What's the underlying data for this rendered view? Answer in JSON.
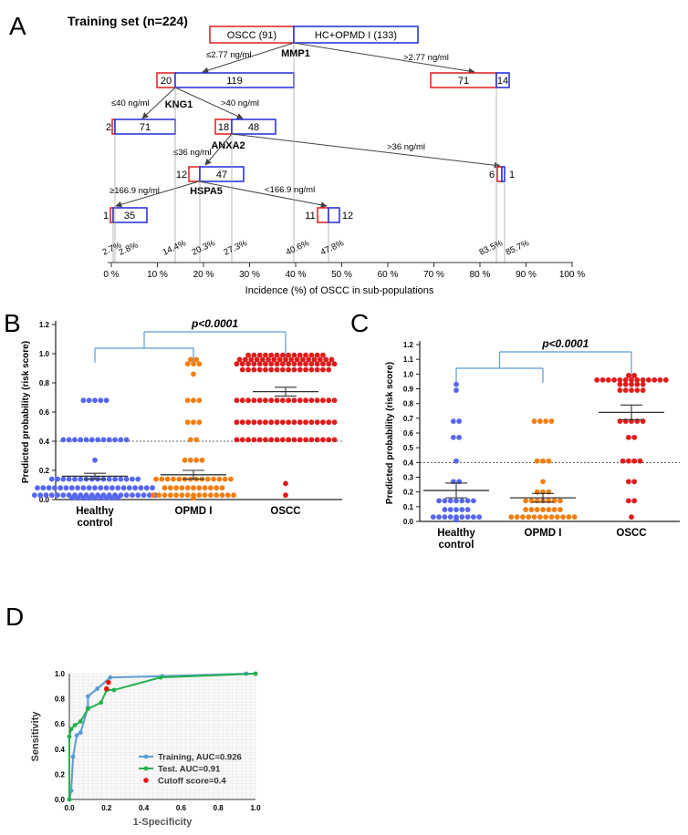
{
  "panels": {
    "a": "A",
    "b": "B",
    "c": "C",
    "d": "D"
  },
  "colors": {
    "red": "#e01b1b",
    "blue": "#1f2bd9",
    "orange": "#f07f13",
    "dot_blue": "#5567ee",
    "train": "#5b9bd5",
    "test": "#22b14c",
    "cut": "#ee1111",
    "bracket": "#5b9bd5"
  },
  "tree": {
    "title": "Training set (n=224)",
    "root": {
      "left": "OSCC (91)",
      "right": "HC+OPMD I (133)"
    },
    "splits": {
      "mmp1": "MMP1",
      "kng1": "KNG1",
      "anxa2": "ANXA2",
      "hspa5": "HSPA5"
    },
    "cond": {
      "mmp1_lo": "≤2.77 ng/ml",
      "mmp1_hi": ">2.77 ng/ml",
      "kng1_lo": "≤40 ng/ml",
      "kng1_hi": ">40 ng/ml",
      "anxa2_lo": "≤36 ng/ml",
      "anxa2_hi": ">36 ng/ml",
      "hspa5_lo": "≥166.9 ng/ml",
      "hspa5_hi": "<166.9 ng/ml"
    },
    "nodes": {
      "n1": {
        "a": "20",
        "b": "119"
      },
      "n2": {
        "a": "71",
        "b": "14"
      },
      "n3": {
        "a": "2",
        "b": "71"
      },
      "n4": {
        "a": "18",
        "b": "48"
      },
      "n5": {
        "a": "12",
        "b": "47"
      },
      "n6": {
        "a": "6",
        "b": "1"
      },
      "n7": {
        "a": "1",
        "b": "35"
      },
      "n8": {
        "a": "11",
        "b": "12"
      }
    },
    "incidence": [
      "2.7%",
      "2.8%",
      "14.4%",
      "20.3%",
      "27.3%",
      "40.6%",
      "47.8%",
      "83.5%",
      "85.7%"
    ],
    "axis_ticks": [
      "0 %",
      "10 %",
      "20 %",
      "30 %",
      "40 %",
      "50 %",
      "60 %",
      "70 %",
      "80 %",
      "90 %",
      "100 %"
    ],
    "axis_label": "Incidence (%) of OSCC in sub-populations"
  },
  "panel_b": {
    "pvalue": "p<0.0001",
    "ylabel": "Predicted probability (risk score)",
    "yticks": [
      "0.0",
      "0.2",
      "0.4",
      "0.6",
      "0.8",
      "1.0",
      "1.2"
    ],
    "groups": [
      {
        "line1": "Healthy",
        "line2": "control"
      },
      {
        "line1": "OPMD I",
        "line2": ""
      },
      {
        "line1": "OSCC",
        "line2": ""
      }
    ]
  },
  "panel_c": {
    "pvalue": "p<0.0001",
    "ylabel": "Predicted probability (risk score)",
    "yticks": [
      "0.0",
      "0.1",
      "0.2",
      "0.3",
      "0.4",
      "0.5",
      "0.6",
      "0.7",
      "0.8",
      "0.9",
      "1.0",
      "1.1",
      "1.2"
    ],
    "groups": [
      {
        "line1": "Healthy",
        "line2": "control"
      },
      {
        "line1": "OPMD I",
        "line2": ""
      },
      {
        "line1": "OSCC",
        "line2": ""
      }
    ]
  },
  "chart_data": [
    {
      "type": "scatter",
      "panel": "B",
      "ylabel": "Predicted probability (risk score)",
      "ylim": [
        0,
        1.2
      ],
      "threshold": 0.4,
      "categories": [
        "Healthy control",
        "OPMD I",
        "OSCC"
      ],
      "series": [
        {
          "name": "Healthy control",
          "mean": 0.16,
          "sem": 0.02,
          "color": "#5567ee",
          "values": [
            0.68,
            0.68,
            0.68,
            0.68,
            0.68,
            0.41,
            0.41,
            0.41,
            0.41,
            0.41,
            0.41,
            0.41,
            0.41,
            0.41,
            0.41,
            0.41,
            0.41,
            0.27,
            0.14,
            0.14,
            0.14,
            0.14,
            0.14,
            0.14,
            0.14,
            0.14,
            0.14,
            0.14,
            0.14,
            0.14,
            0.14,
            0.14,
            0.14,
            0.14,
            0.08,
            0.08,
            0.08,
            0.08,
            0.08,
            0.08,
            0.08,
            0.08,
            0.08,
            0.08,
            0.08,
            0.08,
            0.08,
            0.08,
            0.08,
            0.08,
            0.08,
            0.08,
            0.08,
            0.08,
            0.08,
            0.03,
            0.03,
            0.03,
            0.03,
            0.03,
            0.03,
            0.03,
            0.03,
            0.03,
            0.03,
            0.03,
            0.03,
            0.03,
            0.03,
            0.03,
            0.03,
            0.03,
            0.03,
            0.03,
            0.03,
            0.03,
            0.03,
            0.01,
            0.01,
            0.01,
            0.01,
            0.01,
            0.01,
            0.01,
            0.01,
            0.01
          ]
        },
        {
          "name": "OPMD I",
          "mean": 0.17,
          "sem": 0.03,
          "color": "#f07f13",
          "values": [
            0.96,
            0.96,
            0.93,
            0.93,
            0.93,
            0.86,
            0.68,
            0.68,
            0.68,
            0.53,
            0.53,
            0.53,
            0.41,
            0.41,
            0.27,
            0.27,
            0.27,
            0.27,
            0.14,
            0.14,
            0.14,
            0.14,
            0.14,
            0.14,
            0.14,
            0.14,
            0.14,
            0.14,
            0.14,
            0.14,
            0.14,
            0.14,
            0.08,
            0.08,
            0.08,
            0.08,
            0.08,
            0.08,
            0.08,
            0.08,
            0.08,
            0.08,
            0.08,
            0.03,
            0.03,
            0.03,
            0.03,
            0.03,
            0.03,
            0.03,
            0.03,
            0.03,
            0.03,
            0.03,
            0.03,
            0.03,
            0.03,
            0.03,
            0.01
          ]
        },
        {
          "name": "OSCC",
          "mean": 0.74,
          "sem": 0.03,
          "color": "#e01b1b",
          "values": [
            0.99,
            0.99,
            0.99,
            0.99,
            0.99,
            0.99,
            0.99,
            0.99,
            0.99,
            0.99,
            0.99,
            0.99,
            0.99,
            0.99,
            0.96,
            0.96,
            0.96,
            0.96,
            0.96,
            0.96,
            0.96,
            0.96,
            0.96,
            0.96,
            0.96,
            0.96,
            0.96,
            0.96,
            0.96,
            0.96,
            0.96,
            0.93,
            0.93,
            0.93,
            0.93,
            0.93,
            0.93,
            0.93,
            0.93,
            0.93,
            0.93,
            0.93,
            0.93,
            0.93,
            0.93,
            0.93,
            0.93,
            0.93,
            0.93,
            0.89,
            0.89,
            0.89,
            0.89,
            0.89,
            0.89,
            0.89,
            0.89,
            0.89,
            0.89,
            0.89,
            0.89,
            0.89,
            0.89,
            0.89,
            0.89,
            0.68,
            0.68,
            0.68,
            0.68,
            0.68,
            0.68,
            0.68,
            0.68,
            0.68,
            0.68,
            0.68,
            0.68,
            0.68,
            0.68,
            0.68,
            0.68,
            0.68,
            0.68,
            0.53,
            0.53,
            0.53,
            0.53,
            0.53,
            0.53,
            0.53,
            0.53,
            0.53,
            0.53,
            0.53,
            0.53,
            0.53,
            0.53,
            0.53,
            0.53,
            0.53,
            0.53,
            0.41,
            0.41,
            0.41,
            0.41,
            0.41,
            0.41,
            0.41,
            0.41,
            0.41,
            0.41,
            0.41,
            0.41,
            0.41,
            0.41,
            0.41,
            0.41,
            0.41,
            0.41,
            0.11,
            0.03
          ]
        }
      ]
    },
    {
      "type": "scatter",
      "panel": "C",
      "ylabel": "Predicted probability (risk score)",
      "ylim": [
        0,
        1.2
      ],
      "threshold": 0.4,
      "categories": [
        "Healthy control",
        "OPMD I",
        "OSCC"
      ],
      "series": [
        {
          "name": "Healthy control",
          "mean": 0.21,
          "sem": 0.05,
          "color": "#5567ee",
          "values": [
            0.93,
            0.89,
            0.68,
            0.68,
            0.57,
            0.57,
            0.41,
            0.27,
            0.27,
            0.14,
            0.14,
            0.14,
            0.14,
            0.14,
            0.14,
            0.14,
            0.08,
            0.08,
            0.08,
            0.08,
            0.08,
            0.03,
            0.03,
            0.03,
            0.03,
            0.03,
            0.03,
            0.03,
            0.03,
            0.03,
            0.01
          ]
        },
        {
          "name": "OPMD I",
          "mean": 0.16,
          "sem": 0.03,
          "color": "#f07f13",
          "values": [
            0.68,
            0.68,
            0.68,
            0.68,
            0.41,
            0.41,
            0.41,
            0.27,
            0.2,
            0.2,
            0.2,
            0.14,
            0.14,
            0.14,
            0.14,
            0.14,
            0.14,
            0.14,
            0.08,
            0.08,
            0.08,
            0.08,
            0.08,
            0.08,
            0.08,
            0.03,
            0.03,
            0.03,
            0.03,
            0.03,
            0.03,
            0.03,
            0.03,
            0.03,
            0.03,
            0.03,
            0.03
          ]
        },
        {
          "name": "OSCC",
          "mean": 0.74,
          "sem": 0.05,
          "color": "#e01b1b",
          "values": [
            0.99,
            0.99,
            0.96,
            0.96,
            0.96,
            0.96,
            0.96,
            0.96,
            0.96,
            0.96,
            0.96,
            0.96,
            0.96,
            0.96,
            0.96,
            0.93,
            0.93,
            0.93,
            0.93,
            0.93,
            0.89,
            0.89,
            0.89,
            0.89,
            0.89,
            0.68,
            0.68,
            0.68,
            0.68,
            0.68,
            0.57,
            0.57,
            0.41,
            0.41,
            0.41,
            0.41,
            0.27,
            0.27,
            0.14,
            0.14,
            0.03
          ]
        }
      ]
    },
    {
      "type": "line",
      "panel": "D",
      "xlabel": "1-Specificity",
      "ylabel": "Sensitivity",
      "xlim": [
        0,
        1
      ],
      "ylim": [
        0,
        1
      ],
      "xticks": [
        "0.0",
        "0.2",
        "0.4",
        "0.6",
        "0.8",
        "1.0"
      ],
      "yticks": [
        "0.0",
        "0.2",
        "0.4",
        "0.6",
        "0.8",
        "1.0"
      ],
      "grid": true,
      "legend_position": "bottom-right",
      "series": [
        {
          "name": "Training, AUC=0.926",
          "color": "#5b9bd5",
          "x": [
            0,
            0.01,
            0.02,
            0.04,
            0.06,
            0.1,
            0.1,
            0.15,
            0.22,
            0.5,
            0.95,
            1.0
          ],
          "y": [
            0,
            0.07,
            0.34,
            0.51,
            0.53,
            0.73,
            0.82,
            0.88,
            0.97,
            0.98,
            1.0,
            1.0
          ]
        },
        {
          "name": "Test. AUC=0.91",
          "color": "#22b14c",
          "x": [
            0,
            0,
            0.01,
            0.03,
            0.06,
            0.1,
            0.17,
            0.2,
            0.24,
            0.49,
            1.0
          ],
          "y": [
            0,
            0.5,
            0.56,
            0.59,
            0.62,
            0.72,
            0.77,
            0.87,
            0.87,
            0.97,
            1.0
          ]
        },
        {
          "name": "Cutoff score=0.4",
          "color": "#ee1111",
          "type": "marker",
          "x": [
            0.2,
            0.21
          ],
          "y": [
            0.88,
            0.93
          ]
        }
      ]
    }
  ]
}
